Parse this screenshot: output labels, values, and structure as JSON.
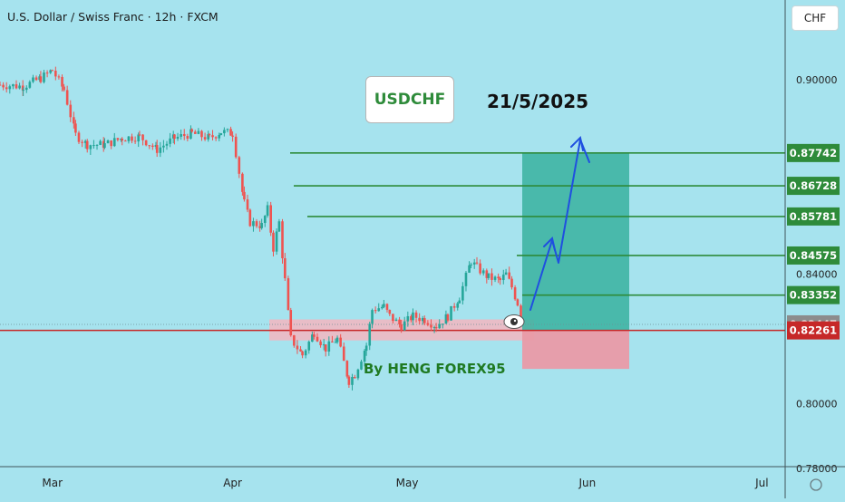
{
  "header": {
    "symbol_title": "U.S. Dollar / Swiss Franc · 12h · FXCM",
    "currency_button": "CHF"
  },
  "annotations": {
    "pair_label": "USDCHF",
    "date_label": "21/5/2025",
    "author_label": "By HENG FOREX95"
  },
  "colors": {
    "background": "#a6e3ee",
    "candle_up": "#26a69a",
    "candle_down": "#ef5350",
    "level_line": "#2e8b3a",
    "current_price_line": "#c62828",
    "profit_zone": "#3fb4a3",
    "loss_zone": "#e99aa6",
    "support_zone": "#f3b6c0",
    "arrow": "#1f4fe0"
  },
  "chart_data": {
    "type": "candlestick",
    "title": "U.S. Dollar / Swiss Franc · 12h · FXCM",
    "ylim": [
      0.7707,
      0.9247
    ],
    "y_ticks": [
      0.78,
      0.8,
      0.82,
      0.84,
      0.86,
      0.88,
      0.9
    ],
    "y_tick_labels": [
      "0.78000",
      "0.80000",
      "",
      "0.84000",
      "",
      "",
      "0.90000"
    ],
    "x_ticks": [
      {
        "label": "Mar",
        "date": "2025-03-01"
      },
      {
        "label": "Apr",
        "date": "2025-04-01"
      },
      {
        "label": "May",
        "date": "2025-05-01"
      },
      {
        "label": "Jun",
        "date": "2025-06-01"
      },
      {
        "label": "Jul",
        "date": "2025-07-01"
      }
    ],
    "x_range": [
      "2025-02-20",
      "2025-07-05"
    ],
    "price_path": [
      [
        "2025-02-20",
        0.8985
      ],
      [
        "2025-02-24",
        0.898
      ],
      [
        "2025-02-27",
        0.9005
      ],
      [
        "2025-03-01",
        0.903
      ],
      [
        "2025-03-03",
        0.897
      ],
      [
        "2025-03-05",
        0.883
      ],
      [
        "2025-03-07",
        0.88
      ],
      [
        "2025-03-10",
        0.88
      ],
      [
        "2025-03-13",
        0.882
      ],
      [
        "2025-03-16",
        0.8825
      ],
      [
        "2025-03-19",
        0.8785
      ],
      [
        "2025-03-22",
        0.882
      ],
      [
        "2025-03-25",
        0.8835
      ],
      [
        "2025-03-28",
        0.882
      ],
      [
        "2025-03-30",
        0.884
      ],
      [
        "2025-04-01",
        0.8835
      ],
      [
        "2025-04-03",
        0.862
      ],
      [
        "2025-04-04",
        0.856
      ],
      [
        "2025-04-06",
        0.855
      ],
      [
        "2025-04-07",
        0.86
      ],
      [
        "2025-04-08",
        0.848
      ],
      [
        "2025-04-09",
        0.856
      ],
      [
        "2025-04-10",
        0.838
      ],
      [
        "2025-04-11",
        0.82
      ],
      [
        "2025-04-13",
        0.815
      ],
      [
        "2025-04-15",
        0.822
      ],
      [
        "2025-04-17",
        0.817
      ],
      [
        "2025-04-19",
        0.82
      ],
      [
        "2025-04-21",
        0.807
      ],
      [
        "2025-04-22",
        0.809
      ],
      [
        "2025-04-24",
        0.818
      ],
      [
        "2025-04-25",
        0.829
      ],
      [
        "2025-04-27",
        0.83
      ],
      [
        "2025-04-28",
        0.827
      ],
      [
        "2025-04-30",
        0.824
      ],
      [
        "2025-05-02",
        0.827
      ],
      [
        "2025-05-04",
        0.826
      ],
      [
        "2025-05-06",
        0.824
      ],
      [
        "2025-05-08",
        0.827
      ],
      [
        "2025-05-10",
        0.833
      ],
      [
        "2025-05-12",
        0.844
      ],
      [
        "2025-05-13",
        0.842
      ],
      [
        "2025-05-15",
        0.839
      ],
      [
        "2025-05-17",
        0.838
      ],
      [
        "2025-05-18",
        0.84
      ],
      [
        "2025-05-19",
        0.836
      ],
      [
        "2025-05-20",
        0.831
      ],
      [
        "2025-05-21",
        0.824
      ]
    ],
    "levels": [
      0.87742,
      0.86728,
      0.85781,
      0.84575,
      0.83352
    ],
    "current_price": 0.82447,
    "red_line_price": 0.82261,
    "support_zone": [
      0.8195,
      0.826
    ],
    "position": {
      "entry": 0.82261,
      "target": 0.87742,
      "stop": 0.8107
    },
    "price_badges": [
      {
        "label": "0.87742",
        "value": 0.87742,
        "style": "green"
      },
      {
        "label": "0.86728",
        "value": 0.86728,
        "style": "green"
      },
      {
        "label": "0.85781",
        "value": 0.85781,
        "style": "green"
      },
      {
        "label": "0.84575",
        "value": 0.84575,
        "style": "green"
      },
      {
        "label": "0.83352",
        "value": 0.83352,
        "style": "green"
      },
      {
        "label": "0.82447",
        "value": 0.82447,
        "style": "gray"
      },
      {
        "label": "0.82261",
        "value": 0.82261,
        "style": "red"
      }
    ],
    "xlabel": "",
    "ylabel": "",
    "grid": false
  }
}
